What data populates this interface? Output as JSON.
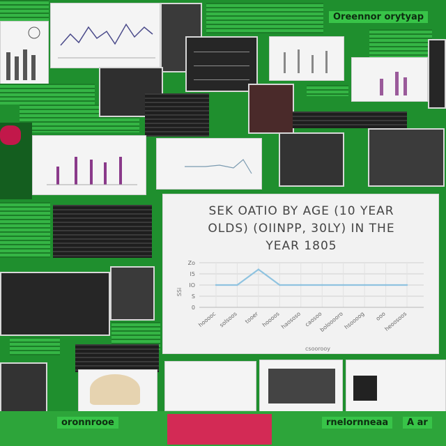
{
  "collage": {
    "banner_top_right": "Oreennor orytyap",
    "banner_bottom_left": "oronnrooe",
    "banner_bottom_mid": "rnelornneaa",
    "banner_bottom_right": "A ar"
  },
  "chart_data": {
    "type": "line",
    "title": "SEK OATIO BY AGE (10 YEAR OLDS) (OIINPP, 30LY) IN THE YEAR 1805",
    "categories": [
      "hooooc",
      "solsoos",
      "tooer",
      "hoooos",
      "haososo",
      "caosoo",
      "bolooooro",
      "hsoooog",
      "ooo",
      "heoosoos"
    ],
    "values": [
      10,
      10,
      17,
      10,
      10,
      10,
      10,
      10,
      10,
      10
    ],
    "y_ticks": [
      "Zo",
      "I5",
      "IO",
      "S",
      "0"
    ],
    "ylim": [
      0,
      20
    ],
    "ylabel": "SSi",
    "xlabel": "csoorooy",
    "grid": true,
    "line_color": "#8fc3e0"
  }
}
